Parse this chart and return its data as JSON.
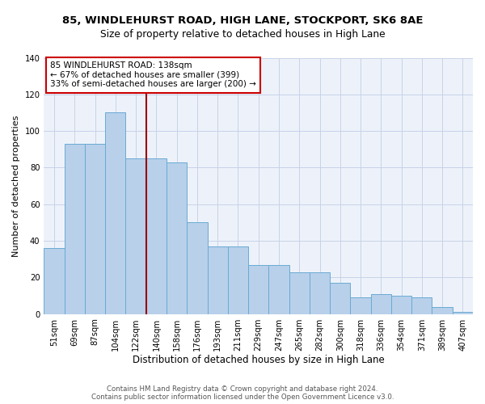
{
  "title": "85, WINDLEHURST ROAD, HIGH LANE, STOCKPORT, SK6 8AE",
  "subtitle": "Size of property relative to detached houses in High Lane",
  "xlabel": "Distribution of detached houses by size in High Lane",
  "ylabel": "Number of detached properties",
  "categories": [
    "51sqm",
    "69sqm",
    "87sqm",
    "104sqm",
    "122sqm",
    "140sqm",
    "158sqm",
    "176sqm",
    "193sqm",
    "211sqm",
    "229sqm",
    "247sqm",
    "265sqm",
    "282sqm",
    "300sqm",
    "318sqm",
    "336sqm",
    "354sqm",
    "371sqm",
    "389sqm",
    "407sqm"
  ],
  "bar_heights": [
    36,
    93,
    93,
    110,
    85,
    85,
    83,
    50,
    37,
    37,
    27,
    27,
    23,
    23,
    17,
    9,
    11,
    10,
    9,
    4,
    1
  ],
  "bar_color": "#b8d0ea",
  "bar_edge_color": "#6aaad4",
  "vline_x": 4.5,
  "vline_color": "#990000",
  "annotation_line1": "85 WINDLEHURST ROAD: 138sqm",
  "annotation_line2": "← 67% of detached houses are smaller (399)",
  "annotation_line3": "33% of semi-detached houses are larger (200) →",
  "annotation_edge_color": "#cc0000",
  "ylim": [
    0,
    140
  ],
  "yticks": [
    0,
    20,
    40,
    60,
    80,
    100,
    120,
    140
  ],
  "grid_color": "#c8d3e8",
  "bg_color": "#edf2fa",
  "footer1": "Contains HM Land Registry data © Crown copyright and database right 2024.",
  "footer2": "Contains public sector information licensed under the Open Government Licence v3.0.",
  "title_fontsize": 9.5,
  "subtitle_fontsize": 8.8,
  "xlabel_fontsize": 8.5,
  "ylabel_fontsize": 8.0,
  "tick_fontsize": 7.2,
  "ann_fontsize": 7.5,
  "footer_fontsize": 6.2
}
